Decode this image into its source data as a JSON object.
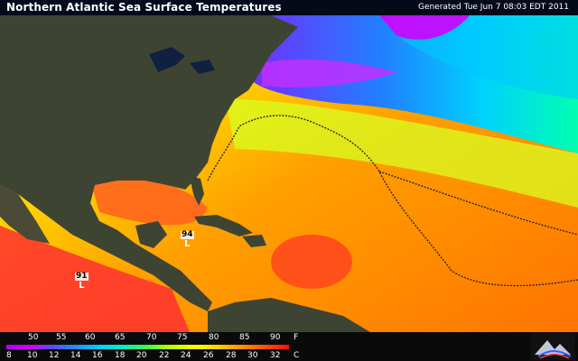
{
  "header": {
    "title": "Northern Atlantic Sea Surface Temperatures",
    "generated": "Generated Tue Jun  7 08:03 EDT 2011"
  },
  "legend": {
    "fahrenheit_ticks": [
      "50",
      "55",
      "60",
      "65",
      "70",
      "75",
      "80",
      "85",
      "90"
    ],
    "fahrenheit_unit": "F",
    "celsius_ticks": [
      "8",
      "10",
      "12",
      "14",
      "16",
      "18",
      "20",
      "22",
      "24",
      "26",
      "28",
      "30",
      "32"
    ],
    "celsius_unit": "C"
  },
  "markers": [
    {
      "value": "94",
      "label": "L"
    },
    {
      "value": "91",
      "label": "L"
    }
  ],
  "colors": {
    "land": "#3a4030",
    "ocean_cold": "#c000ff",
    "ocean_cool": "#00c0ff",
    "ocean_mild": "#c0ff20",
    "ocean_warm": "#ffb000",
    "ocean_hot": "#ff3000"
  }
}
